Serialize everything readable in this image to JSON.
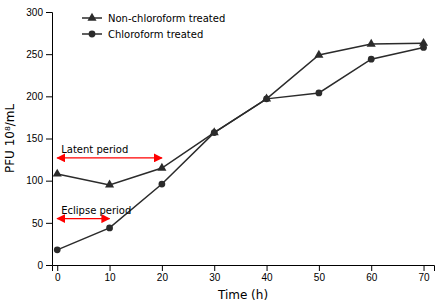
{
  "chart_data": {
    "type": "line",
    "x_label": "Time (h)",
    "y_label": "PFU 10⁸/mL",
    "x": [
      0,
      10,
      20,
      30,
      40,
      50,
      60,
      70
    ],
    "series": [
      {
        "name": "Non-chloroform treated",
        "color": "#2b2b2b",
        "marker": "triangle",
        "values": [
          108,
          95,
          115,
          157,
          197,
          249,
          262,
          263
        ]
      },
      {
        "name": "Chloroform treated",
        "color": "#2b2b2b",
        "marker": "circle",
        "values": [
          18,
          44,
          96,
          157,
          197,
          204,
          244,
          258
        ]
      }
    ],
    "xlim": [
      -1,
      72
    ],
    "ylim": [
      0,
      300
    ],
    "xticks": [
      0,
      10,
      20,
      30,
      40,
      50,
      60,
      70
    ],
    "yticks": [
      0,
      50,
      100,
      150,
      200,
      250,
      300
    ],
    "grid": false,
    "legend": "upper left",
    "annotations": [
      {
        "text": "Latent period",
        "x": [
          0,
          20
        ],
        "y": 127,
        "color": "#ff0000"
      },
      {
        "text": "Eclipse period",
        "x": [
          0,
          10
        ],
        "y": 55,
        "color": "#ff0000"
      }
    ]
  }
}
